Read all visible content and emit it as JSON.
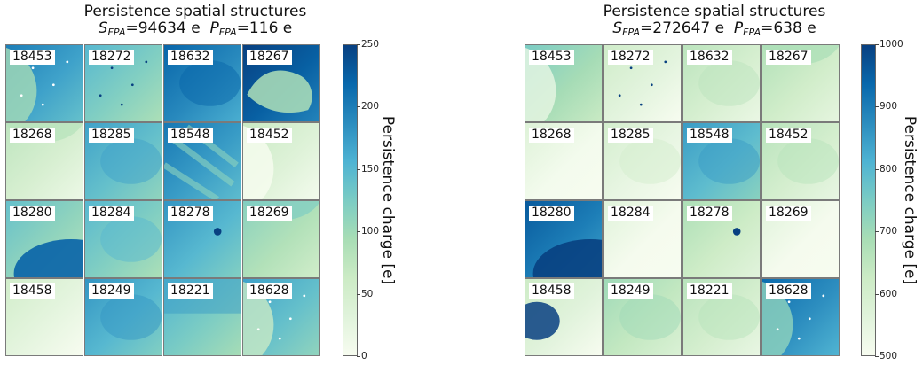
{
  "colors": {
    "colormap": [
      "#f7fcf0",
      "#e0f3db",
      "#ccebc5",
      "#a8ddb5",
      "#7bccc4",
      "#4eb3d3",
      "#2b8cbe",
      "#0868ac",
      "#084081"
    ],
    "tile_border": "#7a7a7a"
  },
  "chart_data": [
    {
      "type": "heatmap",
      "title_line1": "Persistence spatial structures",
      "s_symbol": "S",
      "p_symbol": "P",
      "subscript": "FPA",
      "s_value": "=94634 e",
      "p_value": "=116 e",
      "colorbar_label": "Persistence charge [e]",
      "colorbar_range": [
        0,
        250
      ],
      "colorbar_ticks": [
        "0",
        "50",
        "100",
        "150",
        "200",
        "250"
      ],
      "tick_values": [
        0,
        50,
        100,
        150,
        200,
        250
      ],
      "grid": [
        4,
        4
      ],
      "tiles": [
        {
          "id": "18453",
          "value": 170,
          "feature": "circle-left"
        },
        {
          "id": "18272",
          "value": 120,
          "feature": "dots"
        },
        {
          "id": "18632",
          "value": 190,
          "feature": "mottled"
        },
        {
          "id": "18267",
          "value": 225,
          "feature": "cloud"
        },
        {
          "id": "18268",
          "value": 45,
          "feature": "circle-top"
        },
        {
          "id": "18285",
          "value": 140,
          "feature": "mottled"
        },
        {
          "id": "18548",
          "value": 175,
          "feature": "streaks"
        },
        {
          "id": "18452",
          "value": 35,
          "feature": "circle-left"
        },
        {
          "id": "18280",
          "value": 110,
          "feature": "circle-bottom"
        },
        {
          "id": "18284",
          "value": 120,
          "feature": "mottled"
        },
        {
          "id": "18278",
          "value": 150,
          "feature": "dot"
        },
        {
          "id": "18269",
          "value": 85,
          "feature": "circle-top"
        },
        {
          "id": "18458",
          "value": 25,
          "feature": "none"
        },
        {
          "id": "18249",
          "value": 150,
          "feature": "mottled"
        },
        {
          "id": "18221",
          "value": 125,
          "feature": "gradient"
        },
        {
          "id": "18628",
          "value": 140,
          "feature": "circle-left"
        }
      ]
    },
    {
      "type": "heatmap",
      "title_line1": "Persistence spatial structures",
      "s_symbol": "S",
      "p_symbol": "P",
      "subscript": "FPA",
      "s_value": "=272647 e",
      "p_value": "=638 e",
      "colorbar_label": "Persistence charge [e]",
      "colorbar_range": [
        500,
        1000
      ],
      "colorbar_ticks": [
        "500",
        "600",
        "700",
        "800",
        "900",
        "1000"
      ],
      "tick_values": [
        500,
        600,
        700,
        800,
        900,
        1000
      ],
      "grid": [
        4,
        4
      ],
      "tiles": [
        {
          "id": "18453",
          "value": 690,
          "feature": "circle-left"
        },
        {
          "id": "18272",
          "value": 555,
          "feature": "dots"
        },
        {
          "id": "18632",
          "value": 595,
          "feature": "mottled"
        },
        {
          "id": "18267",
          "value": 610,
          "feature": "circle-top"
        },
        {
          "id": "18268",
          "value": 510,
          "feature": "none"
        },
        {
          "id": "18285",
          "value": 540,
          "feature": "mottled"
        },
        {
          "id": "18548",
          "value": 790,
          "feature": "mottled"
        },
        {
          "id": "18452",
          "value": 600,
          "feature": "mottled"
        },
        {
          "id": "18280",
          "value": 900,
          "feature": "circle-bottom"
        },
        {
          "id": "18284",
          "value": 505,
          "feature": "none"
        },
        {
          "id": "18278",
          "value": 620,
          "feature": "dot"
        },
        {
          "id": "18269",
          "value": 505,
          "feature": "none"
        },
        {
          "id": "18458",
          "value": 560,
          "feature": "blob"
        },
        {
          "id": "18249",
          "value": 640,
          "feature": "mottled"
        },
        {
          "id": "18221",
          "value": 600,
          "feature": "mottled"
        },
        {
          "id": "18628",
          "value": 870,
          "feature": "circle-left"
        }
      ]
    }
  ]
}
